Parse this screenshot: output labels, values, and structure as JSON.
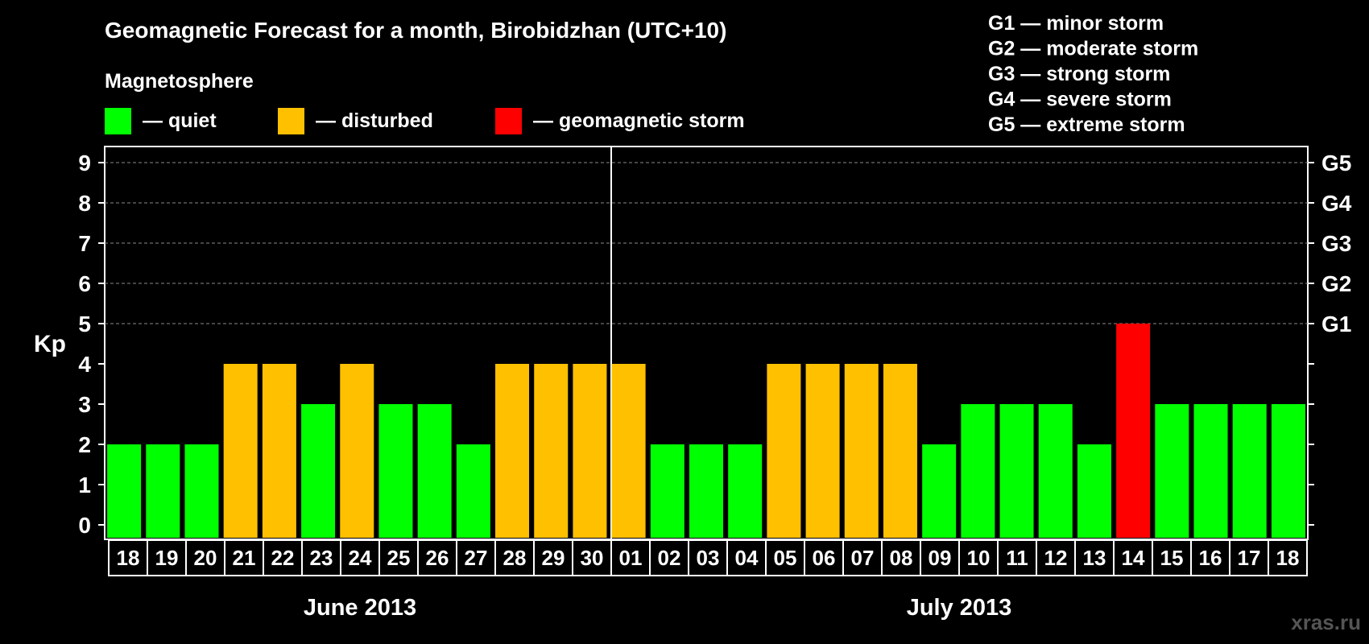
{
  "chart_data": {
    "type": "bar",
    "title": "Geomagnetic Forecast for a month, Birobidzhan (UTC+10)",
    "legend_heading": "Magnetosphere",
    "legend": [
      {
        "label": "— quiet",
        "color": "#00ff00"
      },
      {
        "label": "— disturbed",
        "color": "#ffc000"
      },
      {
        "label": "— geomagnetic storm",
        "color": "#ff0000"
      }
    ],
    "storm_scale": [
      "G1 — minor storm",
      "G2 — moderate storm",
      "G3 — strong storm",
      "G4 — severe storm",
      "G5 — extreme storm"
    ],
    "ylabel": "Kp",
    "ylim": [
      0,
      9
    ],
    "yticks": [
      "0",
      "1",
      "2",
      "3",
      "4",
      "5",
      "6",
      "7",
      "8",
      "9"
    ],
    "right_ticks": [
      {
        "kp": 5,
        "label": "G1"
      },
      {
        "kp": 6,
        "label": "G2"
      },
      {
        "kp": 7,
        "label": "G3"
      },
      {
        "kp": 8,
        "label": "G4"
      },
      {
        "kp": 9,
        "label": "G5"
      }
    ],
    "grid": "dashed horizontal at Kp 5–9",
    "categories": [
      "18",
      "19",
      "20",
      "21",
      "22",
      "23",
      "24",
      "25",
      "26",
      "27",
      "28",
      "29",
      "30",
      "01",
      "02",
      "03",
      "04",
      "05",
      "06",
      "07",
      "08",
      "09",
      "10",
      "11",
      "12",
      "13",
      "14",
      "15",
      "16",
      "17",
      "18"
    ],
    "values": [
      2,
      2,
      2,
      4,
      4,
      3,
      4,
      3,
      3,
      2,
      4,
      4,
      4,
      4,
      2,
      2,
      2,
      4,
      4,
      4,
      4,
      2,
      3,
      3,
      3,
      2,
      5,
      3,
      3,
      3,
      3
    ],
    "bar_colors": {
      "quiet": "#00ff00",
      "disturbed": "#ffc000",
      "storm": "#ff0000"
    },
    "months": [
      {
        "label": "June 2013",
        "days": 13
      },
      {
        "label": "July 2013",
        "days": 18
      }
    ]
  },
  "watermark": "xras.ru"
}
